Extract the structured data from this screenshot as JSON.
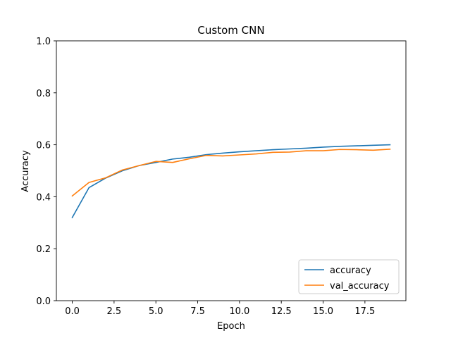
{
  "chart_data": {
    "type": "line",
    "title": "Custom CNN",
    "xlabel": "Epoch",
    "ylabel": "Accuracy",
    "x": [
      0,
      1,
      2,
      3,
      4,
      5,
      6,
      7,
      8,
      9,
      10,
      11,
      12,
      13,
      14,
      15,
      16,
      17,
      18,
      19
    ],
    "series": [
      {
        "name": "accuracy",
        "color": "#1f77b4",
        "values": [
          0.32,
          0.435,
          0.472,
          0.5,
          0.52,
          0.532,
          0.545,
          0.552,
          0.562,
          0.568,
          0.573,
          0.577,
          0.581,
          0.584,
          0.587,
          0.591,
          0.594,
          0.596,
          0.598,
          0.6
        ]
      },
      {
        "name": "val_accuracy",
        "color": "#ff7f0e",
        "values": [
          0.403,
          0.455,
          0.473,
          0.503,
          0.52,
          0.536,
          0.532,
          0.546,
          0.559,
          0.557,
          0.561,
          0.565,
          0.571,
          0.572,
          0.577,
          0.577,
          0.582,
          0.581,
          0.579,
          0.583
        ]
      }
    ],
    "xlim": [
      -0.95,
      19.95
    ],
    "ylim": [
      0.0,
      1.0
    ],
    "xticks": [
      "0.0",
      "2.5",
      "5.0",
      "7.5",
      "10.0",
      "12.5",
      "15.0",
      "17.5"
    ],
    "xtick_values": [
      0.0,
      2.5,
      5.0,
      7.5,
      10.0,
      12.5,
      15.0,
      17.5
    ],
    "yticks": [
      "0.0",
      "0.2",
      "0.4",
      "0.6",
      "0.8",
      "1.0"
    ],
    "ytick_values": [
      0.0,
      0.2,
      0.4,
      0.6,
      0.8,
      1.0
    ],
    "grid": false,
    "legend_position": "lower-right"
  }
}
